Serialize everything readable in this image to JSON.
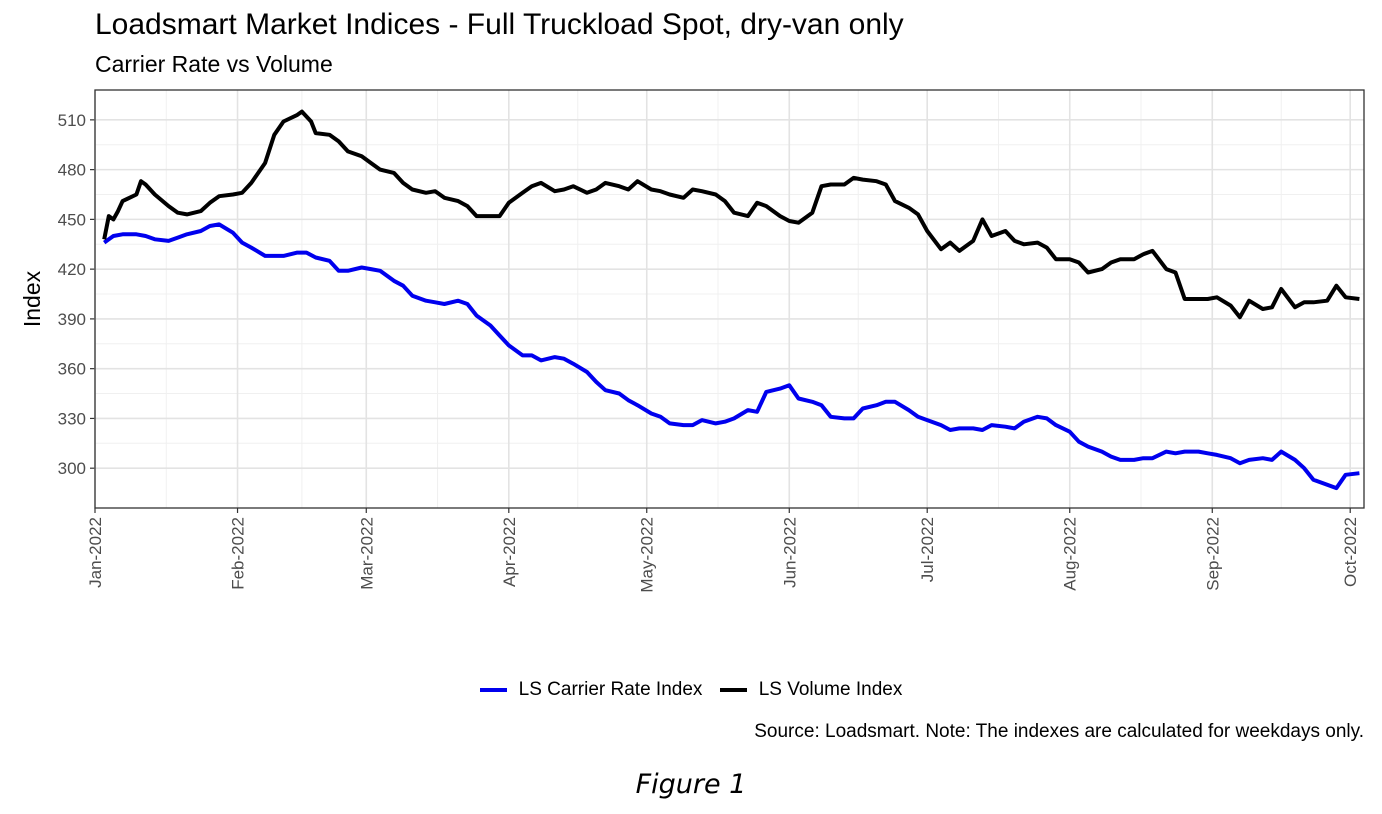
{
  "chart_data": {
    "type": "line",
    "title": "Loadsmart Market Indices - Full Truckload Spot, dry-van only",
    "subtitle": "Carrier Rate vs Volume",
    "xlabel": "",
    "ylabel": "Index",
    "xlim": [
      "2022-01-01",
      "2022-10-04"
    ],
    "ylim": [
      276,
      528
    ],
    "x_ticks": [
      "2022-01-01",
      "2022-02-01",
      "2022-03-01",
      "2022-04-01",
      "2022-05-01",
      "2022-06-01",
      "2022-07-01",
      "2022-08-01",
      "2022-09-01",
      "2022-10-01"
    ],
    "x_tick_labels": [
      "Jan-2022",
      "Feb-2022",
      "Mar-2022",
      "Apr-2022",
      "May-2022",
      "Jun-2022",
      "Jul-2022",
      "Aug-2022",
      "Sep-2022",
      "Oct-2022"
    ],
    "y_ticks": [
      300,
      330,
      360,
      390,
      420,
      450,
      480,
      510
    ],
    "grid": true,
    "legend_position": "bottom",
    "caption": "Source: Loadsmart. Note: The indexes are calculated for weekdays only.",
    "series": [
      {
        "name": "LS Carrier Rate Index",
        "color": "#0000ee",
        "points": [
          [
            "2022-01-03",
            436
          ],
          [
            "2022-01-04",
            438
          ],
          [
            "2022-01-05",
            440
          ],
          [
            "2022-01-07",
            441
          ],
          [
            "2022-01-10",
            441
          ],
          [
            "2022-01-12",
            440
          ],
          [
            "2022-01-14",
            438
          ],
          [
            "2022-01-17",
            437
          ],
          [
            "2022-01-19",
            439
          ],
          [
            "2022-01-21",
            441
          ],
          [
            "2022-01-24",
            443
          ],
          [
            "2022-01-26",
            446
          ],
          [
            "2022-01-28",
            447
          ],
          [
            "2022-01-31",
            442
          ],
          [
            "2022-02-02",
            436
          ],
          [
            "2022-02-04",
            433
          ],
          [
            "2022-02-07",
            428
          ],
          [
            "2022-02-09",
            428
          ],
          [
            "2022-02-11",
            428
          ],
          [
            "2022-02-14",
            430
          ],
          [
            "2022-02-16",
            430
          ],
          [
            "2022-02-18",
            427
          ],
          [
            "2022-02-21",
            425
          ],
          [
            "2022-02-23",
            419
          ],
          [
            "2022-02-25",
            419
          ],
          [
            "2022-02-28",
            421
          ],
          [
            "2022-03-02",
            420
          ],
          [
            "2022-03-04",
            419
          ],
          [
            "2022-03-07",
            413
          ],
          [
            "2022-03-09",
            410
          ],
          [
            "2022-03-11",
            404
          ],
          [
            "2022-03-14",
            401
          ],
          [
            "2022-03-16",
            400
          ],
          [
            "2022-03-18",
            399
          ],
          [
            "2022-03-21",
            401
          ],
          [
            "2022-03-23",
            399
          ],
          [
            "2022-03-25",
            392
          ],
          [
            "2022-03-28",
            386
          ],
          [
            "2022-03-30",
            380
          ],
          [
            "2022-04-01",
            374
          ],
          [
            "2022-04-04",
            368
          ],
          [
            "2022-04-06",
            368
          ],
          [
            "2022-04-08",
            365
          ],
          [
            "2022-04-11",
            367
          ],
          [
            "2022-04-13",
            366
          ],
          [
            "2022-04-15",
            363
          ],
          [
            "2022-04-18",
            358
          ],
          [
            "2022-04-20",
            352
          ],
          [
            "2022-04-22",
            347
          ],
          [
            "2022-04-25",
            345
          ],
          [
            "2022-04-27",
            341
          ],
          [
            "2022-04-29",
            338
          ],
          [
            "2022-05-02",
            333
          ],
          [
            "2022-05-04",
            331
          ],
          [
            "2022-05-06",
            327
          ],
          [
            "2022-05-09",
            326
          ],
          [
            "2022-05-11",
            326
          ],
          [
            "2022-05-13",
            329
          ],
          [
            "2022-05-16",
            327
          ],
          [
            "2022-05-18",
            328
          ],
          [
            "2022-05-20",
            330
          ],
          [
            "2022-05-23",
            335
          ],
          [
            "2022-05-25",
            334
          ],
          [
            "2022-05-27",
            346
          ],
          [
            "2022-05-30",
            348
          ],
          [
            "2022-06-01",
            350
          ],
          [
            "2022-06-03",
            342
          ],
          [
            "2022-06-06",
            340
          ],
          [
            "2022-06-08",
            338
          ],
          [
            "2022-06-10",
            331
          ],
          [
            "2022-06-13",
            330
          ],
          [
            "2022-06-15",
            330
          ],
          [
            "2022-06-17",
            336
          ],
          [
            "2022-06-20",
            338
          ],
          [
            "2022-06-22",
            340
          ],
          [
            "2022-06-24",
            340
          ],
          [
            "2022-06-27",
            335
          ],
          [
            "2022-06-29",
            331
          ],
          [
            "2022-07-01",
            329
          ],
          [
            "2022-07-04",
            326
          ],
          [
            "2022-07-06",
            323
          ],
          [
            "2022-07-08",
            324
          ],
          [
            "2022-07-11",
            324
          ],
          [
            "2022-07-13",
            323
          ],
          [
            "2022-07-15",
            326
          ],
          [
            "2022-07-18",
            325
          ],
          [
            "2022-07-20",
            324
          ],
          [
            "2022-07-22",
            328
          ],
          [
            "2022-07-25",
            331
          ],
          [
            "2022-07-27",
            330
          ],
          [
            "2022-07-29",
            326
          ],
          [
            "2022-08-01",
            322
          ],
          [
            "2022-08-03",
            316
          ],
          [
            "2022-08-05",
            313
          ],
          [
            "2022-08-08",
            310
          ],
          [
            "2022-08-10",
            307
          ],
          [
            "2022-08-12",
            305
          ],
          [
            "2022-08-15",
            305
          ],
          [
            "2022-08-17",
            306
          ],
          [
            "2022-08-19",
            306
          ],
          [
            "2022-08-22",
            310
          ],
          [
            "2022-08-24",
            309
          ],
          [
            "2022-08-26",
            310
          ],
          [
            "2022-08-29",
            310
          ],
          [
            "2022-08-31",
            309
          ],
          [
            "2022-09-02",
            308
          ],
          [
            "2022-09-05",
            306
          ],
          [
            "2022-09-07",
            303
          ],
          [
            "2022-09-09",
            305
          ],
          [
            "2022-09-12",
            306
          ],
          [
            "2022-09-14",
            305
          ],
          [
            "2022-09-16",
            310
          ],
          [
            "2022-09-19",
            305
          ],
          [
            "2022-09-21",
            300
          ],
          [
            "2022-09-23",
            293
          ],
          [
            "2022-09-26",
            290
          ],
          [
            "2022-09-28",
            288
          ],
          [
            "2022-09-30",
            296
          ],
          [
            "2022-10-03",
            297
          ]
        ]
      },
      {
        "name": "LS Volume Index",
        "color": "#000000",
        "points": [
          [
            "2022-01-03",
            438
          ],
          [
            "2022-01-04",
            452
          ],
          [
            "2022-01-05",
            450
          ],
          [
            "2022-01-06",
            455
          ],
          [
            "2022-01-07",
            461
          ],
          [
            "2022-01-10",
            465
          ],
          [
            "2022-01-11",
            473
          ],
          [
            "2022-01-12",
            471
          ],
          [
            "2022-01-14",
            465
          ],
          [
            "2022-01-17",
            458
          ],
          [
            "2022-01-19",
            454
          ],
          [
            "2022-01-21",
            453
          ],
          [
            "2022-01-24",
            455
          ],
          [
            "2022-01-26",
            460
          ],
          [
            "2022-01-28",
            464
          ],
          [
            "2022-01-31",
            465
          ],
          [
            "2022-02-02",
            466
          ],
          [
            "2022-02-04",
            472
          ],
          [
            "2022-02-07",
            484
          ],
          [
            "2022-02-09",
            501
          ],
          [
            "2022-02-11",
            509
          ],
          [
            "2022-02-14",
            513
          ],
          [
            "2022-02-15",
            515
          ],
          [
            "2022-02-17",
            509
          ],
          [
            "2022-02-18",
            502
          ],
          [
            "2022-02-21",
            501
          ],
          [
            "2022-02-23",
            497
          ],
          [
            "2022-02-25",
            491
          ],
          [
            "2022-02-28",
            488
          ],
          [
            "2022-03-02",
            484
          ],
          [
            "2022-03-04",
            480
          ],
          [
            "2022-03-07",
            478
          ],
          [
            "2022-03-09",
            472
          ],
          [
            "2022-03-11",
            468
          ],
          [
            "2022-03-14",
            466
          ],
          [
            "2022-03-16",
            467
          ],
          [
            "2022-03-18",
            463
          ],
          [
            "2022-03-21",
            461
          ],
          [
            "2022-03-23",
            458
          ],
          [
            "2022-03-25",
            452
          ],
          [
            "2022-03-28",
            452
          ],
          [
            "2022-03-30",
            452
          ],
          [
            "2022-04-01",
            460
          ],
          [
            "2022-04-04",
            466
          ],
          [
            "2022-04-06",
            470
          ],
          [
            "2022-04-08",
            472
          ],
          [
            "2022-04-11",
            467
          ],
          [
            "2022-04-13",
            468
          ],
          [
            "2022-04-15",
            470
          ],
          [
            "2022-04-18",
            466
          ],
          [
            "2022-04-20",
            468
          ],
          [
            "2022-04-22",
            472
          ],
          [
            "2022-04-25",
            470
          ],
          [
            "2022-04-27",
            468
          ],
          [
            "2022-04-29",
            473
          ],
          [
            "2022-05-02",
            468
          ],
          [
            "2022-05-04",
            467
          ],
          [
            "2022-05-06",
            465
          ],
          [
            "2022-05-09",
            463
          ],
          [
            "2022-05-11",
            468
          ],
          [
            "2022-05-13",
            467
          ],
          [
            "2022-05-16",
            465
          ],
          [
            "2022-05-18",
            461
          ],
          [
            "2022-05-20",
            454
          ],
          [
            "2022-05-23",
            452
          ],
          [
            "2022-05-25",
            460
          ],
          [
            "2022-05-27",
            458
          ],
          [
            "2022-05-30",
            452
          ],
          [
            "2022-06-01",
            449
          ],
          [
            "2022-06-03",
            448
          ],
          [
            "2022-06-06",
            454
          ],
          [
            "2022-06-08",
            470
          ],
          [
            "2022-06-10",
            471
          ],
          [
            "2022-06-13",
            471
          ],
          [
            "2022-06-15",
            475
          ],
          [
            "2022-06-17",
            474
          ],
          [
            "2022-06-20",
            473
          ],
          [
            "2022-06-22",
            471
          ],
          [
            "2022-06-24",
            461
          ],
          [
            "2022-06-27",
            457
          ],
          [
            "2022-06-29",
            453
          ],
          [
            "2022-07-01",
            443
          ],
          [
            "2022-07-04",
            432
          ],
          [
            "2022-07-06",
            436
          ],
          [
            "2022-07-08",
            431
          ],
          [
            "2022-07-11",
            437
          ],
          [
            "2022-07-13",
            450
          ],
          [
            "2022-07-15",
            440
          ],
          [
            "2022-07-18",
            443
          ],
          [
            "2022-07-20",
            437
          ],
          [
            "2022-07-22",
            435
          ],
          [
            "2022-07-25",
            436
          ],
          [
            "2022-07-27",
            433
          ],
          [
            "2022-07-29",
            426
          ],
          [
            "2022-08-01",
            426
          ],
          [
            "2022-08-03",
            424
          ],
          [
            "2022-08-05",
            418
          ],
          [
            "2022-08-08",
            420
          ],
          [
            "2022-08-10",
            424
          ],
          [
            "2022-08-12",
            426
          ],
          [
            "2022-08-15",
            426
          ],
          [
            "2022-08-17",
            429
          ],
          [
            "2022-08-19",
            431
          ],
          [
            "2022-08-22",
            420
          ],
          [
            "2022-08-24",
            418
          ],
          [
            "2022-08-26",
            402
          ],
          [
            "2022-08-29",
            402
          ],
          [
            "2022-08-31",
            402
          ],
          [
            "2022-09-02",
            403
          ],
          [
            "2022-09-05",
            398
          ],
          [
            "2022-09-07",
            391
          ],
          [
            "2022-09-09",
            401
          ],
          [
            "2022-09-12",
            396
          ],
          [
            "2022-09-14",
            397
          ],
          [
            "2022-09-16",
            408
          ],
          [
            "2022-09-19",
            397
          ],
          [
            "2022-09-21",
            400
          ],
          [
            "2022-09-23",
            400
          ],
          [
            "2022-09-26",
            401
          ],
          [
            "2022-09-28",
            410
          ],
          [
            "2022-09-30",
            403
          ],
          [
            "2022-10-03",
            402
          ]
        ]
      }
    ]
  },
  "figure_label": "Figure 1"
}
